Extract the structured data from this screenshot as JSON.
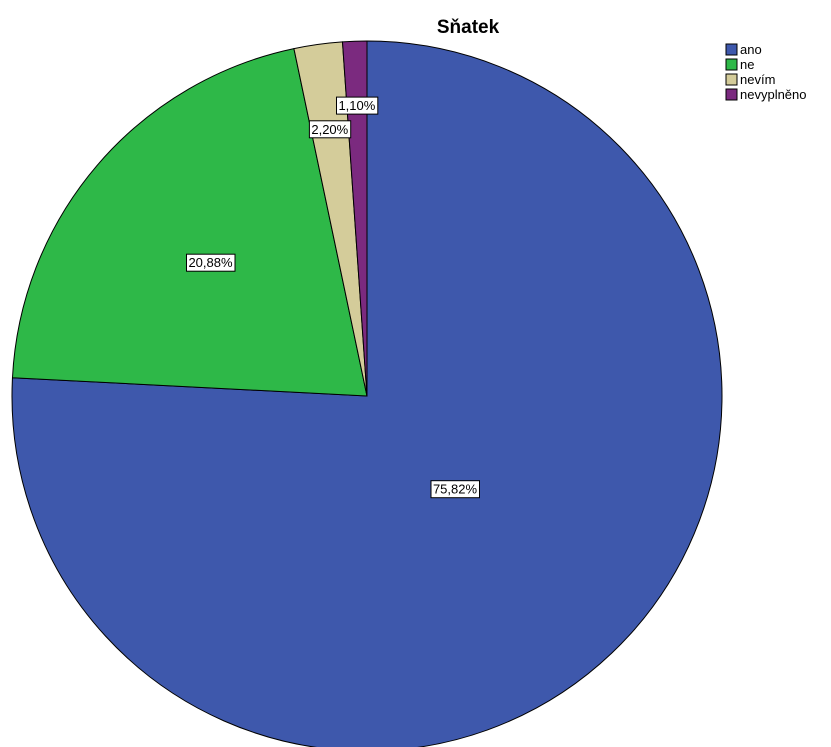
{
  "chart_data": {
    "type": "pie",
    "title": "Sňatek",
    "legend_position": "top-right",
    "slices": [
      {
        "label": "ano",
        "value": 75.82,
        "display": "75,82%",
        "color": "#3e58ac"
      },
      {
        "label": "ne",
        "value": 20.88,
        "display": "20,88%",
        "color": "#2eb848"
      },
      {
        "label": "nevím",
        "value": 2.2,
        "display": "2,20%",
        "color": "#d4cc9a"
      },
      {
        "label": "nevyplněno",
        "value": 1.1,
        "display": "1,10%",
        "color": "#7b2a7f"
      }
    ]
  }
}
